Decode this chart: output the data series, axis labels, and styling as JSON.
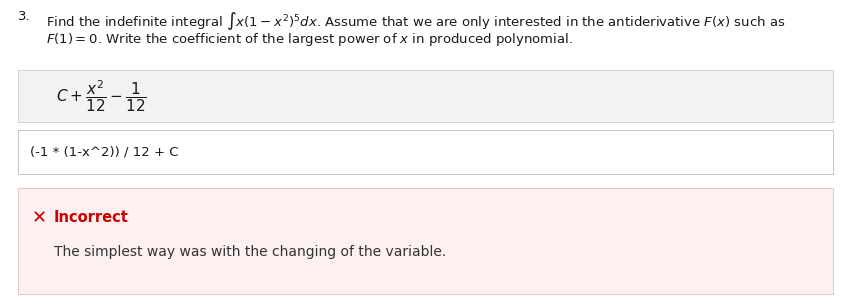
{
  "question_number": "3.",
  "line1_text": "Find the indefinite integral $\\int x(1 - x^2)^5dx$. Assume that we are only interested in the antiderivative $F(x)$ such as",
  "line2_text": "$F(1) = 0$. Write the coefficient of the largest power of $x$ in produced polynomial.",
  "answer_latex": "$C + \\dfrac{x^2}{12} - \\dfrac{1}{12}$",
  "student_answer": "(-1 * (1-x^2)) / 12 + C",
  "feedback_title": "Incorrect",
  "feedback_body": "The simplest way was with the changing of the variable.",
  "bg_color_page": "#ffffff",
  "bg_color_answer_box": "#f2f2f2",
  "bg_color_student_box": "#ffffff",
  "bg_color_feedback": "#fdf0f0",
  "border_color_answer": "#cccccc",
  "border_color_student": "#bbbbbb",
  "border_color_feedback": "#ddc0c0",
  "text_color_main": "#1a1a1a",
  "text_color_feedback_title": "#cc0000",
  "text_color_feedback_body": "#333333",
  "x_mark": "✕",
  "figwidth": 8.43,
  "figheight": 3.07,
  "dpi": 100
}
